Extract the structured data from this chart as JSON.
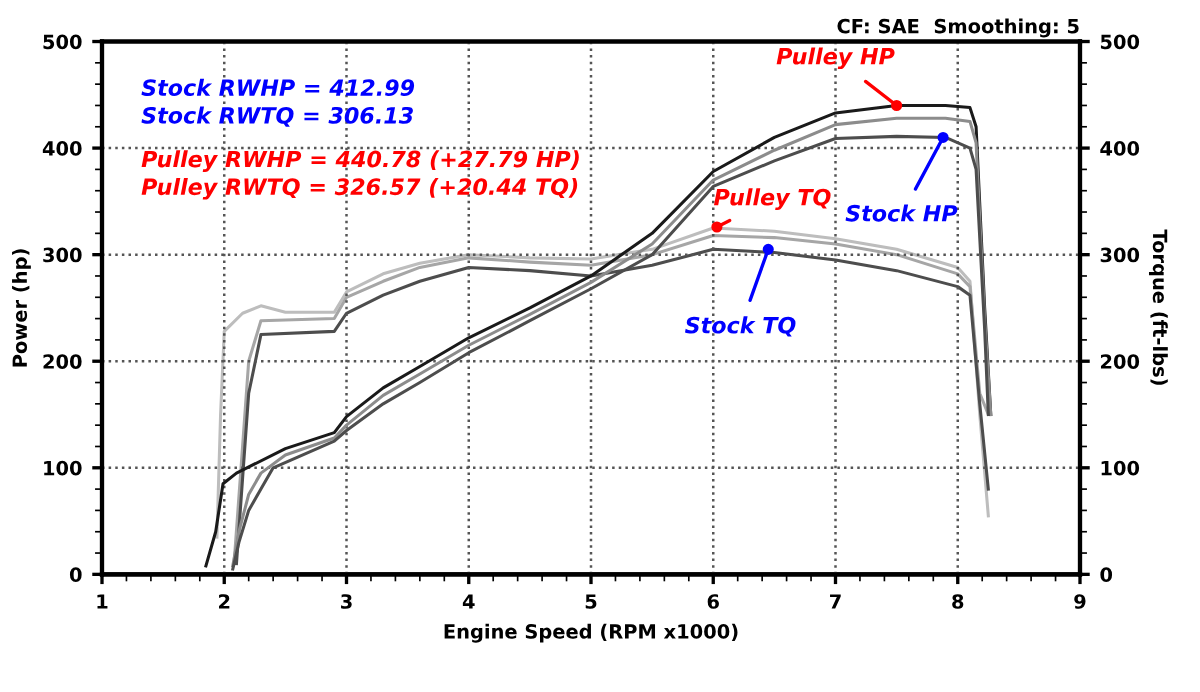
{
  "chart_data": {
    "type": "line",
    "title": "CF: SAE  Smoothing: 5",
    "xlabel": "Engine Speed (RPM x1000)",
    "ylabel": "Power (hp)",
    "y2label": "Torque (ft-lbs)",
    "xlim": [
      1,
      9
    ],
    "xticks": [
      1,
      2,
      3,
      4,
      5,
      6,
      7,
      8,
      9
    ],
    "ylim": [
      0,
      500
    ],
    "yticks": [
      0,
      100,
      200,
      300,
      400,
      500
    ],
    "y2lim": [
      0,
      500
    ],
    "y2ticks": [
      0,
      100,
      200,
      300,
      400,
      500
    ],
    "grid": true,
    "line_style": "solid",
    "marker": "none",
    "series": [
      {
        "color": "#1a1a1a",
        "x": [
          1.85,
          1.93,
          1.99,
          2.1,
          2.5,
          2.9,
          3.0,
          3.3,
          3.6,
          4.0,
          4.5,
          5.0,
          5.5,
          6.0,
          6.5,
          7.0,
          7.5,
          7.9,
          8.1,
          8.15,
          8.22,
          8.27
        ],
        "values": [
          8,
          40,
          85,
          95,
          118,
          133,
          148,
          175,
          195,
          222,
          250,
          280,
          320,
          378,
          410,
          433,
          440,
          440,
          438,
          420,
          250,
          150
        ]
      },
      {
        "color": "#8c8c8c",
        "x": [
          2.07,
          2.12,
          2.2,
          2.3,
          2.5,
          2.9,
          3.0,
          3.3,
          3.6,
          4.0,
          4.5,
          5.0,
          5.5,
          6.0,
          6.5,
          7.0,
          7.5,
          7.9,
          8.1,
          8.15,
          8.22,
          8.27
        ],
        "values": [
          8,
          40,
          75,
          95,
          112,
          128,
          140,
          168,
          188,
          215,
          244,
          274,
          310,
          370,
          398,
          422,
          428,
          428,
          425,
          405,
          240,
          150
        ]
      },
      {
        "color": "#4d4d4d",
        "x": [
          2.07,
          2.12,
          2.2,
          2.3,
          2.4,
          2.9,
          3.0,
          3.3,
          3.6,
          4.0,
          4.5,
          5.0,
          5.5,
          6.0,
          6.5,
          7.0,
          7.5,
          7.9,
          8.1,
          8.15,
          8.22,
          8.25
        ],
        "values": [
          5,
          30,
          60,
          80,
          100,
          125,
          135,
          160,
          180,
          208,
          238,
          268,
          300,
          364,
          388,
          409,
          411,
          410,
          400,
          380,
          230,
          150
        ]
      },
      {
        "color": "#bdbdbd",
        "axis": "y2",
        "x": [
          1.94,
          1.97,
          2.0,
          2.15,
          2.3,
          2.5,
          2.9,
          3.0,
          3.3,
          3.6,
          4.0,
          4.5,
          5.0,
          5.5,
          6.0,
          6.5,
          7.0,
          7.5,
          8.0,
          8.1,
          8.18,
          8.25
        ],
        "values": [
          35,
          150,
          228,
          245,
          252,
          246,
          246,
          265,
          282,
          292,
          300,
          297,
          296,
          305,
          325,
          322,
          315,
          305,
          288,
          275,
          150,
          55
        ]
      },
      {
        "color": "#a6a6a6",
        "axis": "y2",
        "x": [
          2.08,
          2.15,
          2.2,
          2.3,
          2.9,
          3.0,
          3.3,
          3.6,
          4.0,
          4.5,
          5.0,
          5.5,
          6.0,
          6.5,
          7.0,
          7.5,
          8.0,
          8.1,
          8.18,
          8.25
        ],
        "values": [
          10,
          120,
          200,
          238,
          240,
          260,
          275,
          288,
          297,
          293,
          290,
          300,
          318,
          316,
          310,
          300,
          282,
          270,
          170,
          150
        ]
      },
      {
        "color": "#4d4d4d",
        "axis": "y2",
        "x": [
          2.1,
          2.15,
          2.2,
          2.3,
          2.9,
          3.0,
          3.3,
          3.6,
          4.0,
          4.5,
          5.0,
          5.5,
          6.0,
          6.5,
          7.0,
          7.5,
          8.0,
          8.1,
          8.18,
          8.25
        ],
        "values": [
          10,
          90,
          170,
          225,
          228,
          245,
          262,
          275,
          288,
          285,
          280,
          290,
          305,
          302,
          295,
          285,
          270,
          262,
          160,
          80
        ]
      }
    ],
    "annotations": [
      "Stock RWHP = 412.99",
      "Stock RWTQ = 306.13",
      "Pulley RWHP = 440.78 (+27.79 HP)",
      "Pulley RWTQ = 326.57 (+20.44 TQ)",
      {
        "text": "Pulley HP",
        "x": 7.5,
        "y": 440
      },
      {
        "text": "Stock HP",
        "x": 7.88,
        "y": 410
      },
      {
        "text": "Pulley TQ",
        "x": 6.03,
        "y": 326
      },
      {
        "text": "Stock TQ",
        "x": 6.45,
        "y": 305
      }
    ]
  }
}
